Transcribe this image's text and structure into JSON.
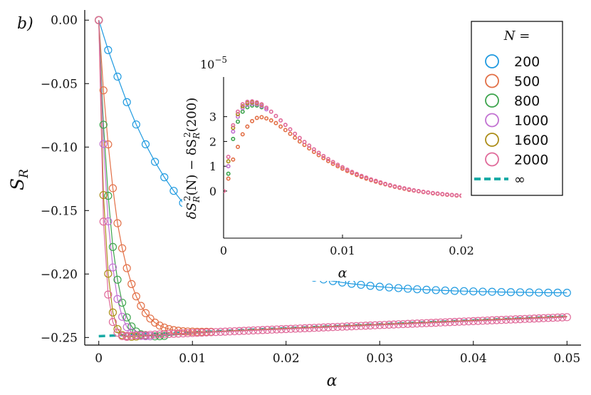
{
  "chart_data": [
    {
      "type": "scatter",
      "panel_label": "b)",
      "xlabel": "α",
      "ylabel": "S_R",
      "ylabel_main": "S",
      "ylabel_sub": "R",
      "xlim": [
        -0.0015,
        0.0515
      ],
      "ylim": [
        -0.256,
        0.008
      ],
      "x_ticks": [
        0,
        0.01,
        0.02,
        0.03,
        0.04,
        0.05
      ],
      "x_tick_labels": [
        "0",
        "0.01",
        "0.02",
        "0.03",
        "0.04",
        "0.05"
      ],
      "y_ticks": [
        0,
        -0.05,
        -0.1,
        -0.15,
        -0.2,
        -0.25
      ],
      "y_tick_labels": [
        "0.00",
        "−0.05",
        "−0.10",
        "−0.15",
        "−0.20",
        "−0.25"
      ],
      "legend": {
        "title": "N =",
        "position": "top-right",
        "entries": [
          {
            "label": "200",
            "color": "#1f9ae0"
          },
          {
            "label": "500",
            "color": "#e26f46"
          },
          {
            "label": "800",
            "color": "#3da44d"
          },
          {
            "label": "1000",
            "color": "#c271d2"
          },
          {
            "label": "1600",
            "color": "#ac8d18"
          },
          {
            "label": "2000",
            "color": "#e06a9a"
          },
          {
            "label": "∞",
            "color": "#19aaa5",
            "style": "dashed"
          }
        ]
      },
      "series": [
        {
          "name": "200",
          "color": "#1f9ae0",
          "marker": "circle",
          "line": "solid",
          "x_start": 0,
          "x_step": 0.001,
          "count": 51,
          "values": [
            0,
            -0.0236,
            -0.0445,
            -0.0646,
            -0.0822,
            -0.0978,
            -0.1116,
            -0.1238,
            -0.1345,
            -0.144,
            -0.1524,
            -0.1598,
            -0.1663,
            -0.1721,
            -0.1772,
            -0.1817,
            -0.1856,
            -0.1891,
            -0.1922,
            -0.1949,
            -0.1973,
            -0.1994,
            -0.2012,
            -0.2029,
            -0.2043,
            -0.2056,
            -0.2067,
            -0.2077,
            -0.2085,
            -0.2093,
            -0.21,
            -0.2106,
            -0.2111,
            -0.2116,
            -0.212,
            -0.2124,
            -0.2127,
            -0.213,
            -0.2133,
            -0.2135,
            -0.2137,
            -0.2139,
            -0.214,
            -0.2142,
            -0.2143,
            -0.2144,
            -0.2145,
            -0.2146,
            -0.2147,
            -0.2147,
            -0.2148
          ]
        },
        {
          "name": "500",
          "color": "#e26f46",
          "marker": "circle",
          "line": "solid",
          "x_start": 0,
          "x_step": 0.0005,
          "count": 25,
          "values": [
            0,
            -0.0553,
            -0.0979,
            -0.1324,
            -0.16,
            -0.1797,
            -0.1954,
            -0.2079,
            -0.2176,
            -0.2251,
            -0.2308,
            -0.2351,
            -0.2383,
            -0.2406,
            -0.2422,
            -0.2434,
            -0.2442,
            -0.2447,
            -0.2451,
            -0.2453,
            -0.2454,
            -0.2455,
            -0.2455,
            -0.2455,
            -0.2455
          ]
        },
        {
          "name": "800",
          "color": "#3da44d",
          "marker": "circle",
          "line": "solid",
          "x_start": 0,
          "x_step": 0.0005,
          "count": 15,
          "values": [
            0,
            -0.0824,
            -0.1384,
            -0.1787,
            -0.2045,
            -0.2226,
            -0.2342,
            -0.2413,
            -0.2453,
            -0.2475,
            -0.2485,
            -0.249,
            -0.2491,
            -0.249,
            -0.2488
          ]
        },
        {
          "name": "1000",
          "color": "#c271d2",
          "marker": "circle",
          "line": "solid",
          "x_start": 0,
          "x_step": 0.0005,
          "count": 12,
          "values": [
            0,
            -0.0975,
            -0.1585,
            -0.1948,
            -0.2197,
            -0.2337,
            -0.2418,
            -0.246,
            -0.248,
            -0.2488,
            -0.249,
            -0.249
          ]
        },
        {
          "name": "1600",
          "color": "#ac8d18",
          "marker": "circle",
          "line": "solid",
          "x_start": 0,
          "x_step": 0.0005,
          "count": 9,
          "values": [
            0,
            -0.1378,
            -0.1998,
            -0.2303,
            -0.2434,
            -0.2481,
            -0.2494,
            -0.2495,
            -0.2493
          ]
        },
        {
          "name": "2000",
          "color": "#e06a9a",
          "marker": "circle",
          "line": "solid",
          "x_start": 0,
          "x_step": 0.0005,
          "overlay": {
            "x_from": 0.003,
            "x_to": 0.05,
            "points": 95,
            "follows": "∞"
          },
          "values": [
            0,
            -0.1587,
            -0.2162,
            -0.2378,
            -0.2462,
            -0.2489,
            -0.2495
          ]
        },
        {
          "name": "∞",
          "color": "#19aaa5",
          "line": "dashed",
          "x": [
            0,
            0.05
          ],
          "y": [
            -0.249,
            -0.2334
          ]
        }
      ]
    },
    {
      "type": "scatter",
      "inset": true,
      "xlabel": "α",
      "ylabel": "δS_R²(N) − δS_R²(200)",
      "ylabel_part1": "δS",
      "ylabel_sub": "R",
      "ylabel_sup": "2",
      "ylabel_part2": "(N) − δS",
      "ylabel_sub2": "R",
      "ylabel_sup2": "2",
      "ylabel_part3": "(200)",
      "y_scale_label": "10",
      "y_scale_exp": "−5",
      "xlim": [
        0,
        0.02
      ],
      "ylim": [
        -1.9,
        4.6
      ],
      "x_ticks": [
        0,
        0.01,
        0.02
      ],
      "x_tick_labels": [
        "0",
        "0.01",
        "0.02"
      ],
      "y_ticks": [
        0,
        1,
        2,
        3
      ],
      "y_tick_labels": [
        "0",
        "1",
        "2",
        "3"
      ],
      "series": [
        {
          "name": "500",
          "color": "#e26f46",
          "x": [
            0,
            0.0004,
            0.0008,
            0.0012,
            0.0016,
            0.002,
            0.0024,
            0.0028,
            0.0032,
            0.0036,
            0.004,
            0.0044,
            0.0048,
            0.0052,
            0.0056,
            0.006,
            0.0064,
            0.0068,
            0.0072,
            0.0076,
            0.008,
            0.0084,
            0.0088,
            0.0092,
            0.0096,
            0.01,
            0.0104,
            0.0108,
            0.0112,
            0.0116,
            0.012,
            0.0124,
            0.0128,
            0.0132,
            0.0136,
            0.014,
            0.0144,
            0.0148,
            0.0152,
            0.0156,
            0.016,
            0.0164,
            0.0168,
            0.0172,
            0.0176,
            0.018,
            0.0184,
            0.0188,
            0.0192,
            0.0196,
            0.02
          ],
          "y": [
            0,
            0.5,
            1.27,
            1.78,
            2.29,
            2.6,
            2.82,
            2.95,
            2.98,
            2.93,
            2.85,
            2.74,
            2.6,
            2.46,
            2.31,
            2.15,
            2.0,
            1.86,
            1.72,
            1.58,
            1.45,
            1.33,
            1.21,
            1.1,
            1.0,
            0.9,
            0.81,
            0.73,
            0.65,
            0.57,
            0.5,
            0.44,
            0.38,
            0.32,
            0.27,
            0.22,
            0.17,
            0.13,
            0.09,
            0.05,
            0.02,
            -0.01,
            -0.04,
            -0.06,
            -0.09,
            -0.11,
            -0.13,
            -0.15,
            -0.16,
            -0.18,
            -0.19
          ]
        },
        {
          "name": "800",
          "color": "#3da44d",
          "x": [
            0.0004,
            0.0008,
            0.0012,
            0.0016,
            0.002,
            0.0024,
            0.0028,
            0.0032
          ],
          "y": [
            0.7,
            2.1,
            2.8,
            3.2,
            3.38,
            3.45,
            3.45,
            3.38
          ]
        },
        {
          "name": "1000",
          "color": "#c271d2",
          "x": [
            0.0004,
            0.0008,
            0.0012,
            0.0016,
            0.002,
            0.0024,
            0.0028,
            0.0032,
            0.0036
          ],
          "y": [
            1.0,
            2.4,
            3.0,
            3.35,
            3.48,
            3.52,
            3.5,
            3.42,
            3.3
          ]
        },
        {
          "name": "1600",
          "color": "#ac8d18",
          "x": [
            0.0004,
            0.0008,
            0.0012,
            0.0016,
            0.002,
            0.0024,
            0.0028,
            0.0032
          ],
          "y": [
            1.2,
            2.55,
            3.1,
            3.42,
            3.55,
            3.58,
            3.55,
            3.48
          ]
        },
        {
          "name": "2000",
          "color": "#e06a9a",
          "x": [
            0,
            0.0004,
            0.0008,
            0.0012,
            0.0016,
            0.002,
            0.0024,
            0.0028,
            0.0032,
            0.0036,
            0.004,
            0.0044,
            0.0048,
            0.0052,
            0.0056,
            0.006,
            0.0064,
            0.0068,
            0.0072,
            0.0076,
            0.008,
            0.0084,
            0.0088,
            0.0092,
            0.0096,
            0.01,
            0.0104,
            0.0108,
            0.0112,
            0.0116,
            0.012,
            0.0124,
            0.0128,
            0.0132,
            0.0136,
            0.014,
            0.0144,
            0.0148,
            0.0152,
            0.0156,
            0.016,
            0.0164,
            0.0168,
            0.0172,
            0.0176,
            0.018,
            0.0184,
            0.0188,
            0.0192,
            0.0196,
            0.02
          ],
          "y": [
            0,
            1.38,
            2.65,
            3.2,
            3.5,
            3.6,
            3.62,
            3.58,
            3.5,
            3.36,
            3.2,
            3.03,
            2.85,
            2.67,
            2.49,
            2.31,
            2.14,
            1.98,
            1.83,
            1.68,
            1.54,
            1.41,
            1.29,
            1.17,
            1.06,
            0.96,
            0.86,
            0.77,
            0.69,
            0.61,
            0.54,
            0.47,
            0.41,
            0.35,
            0.29,
            0.24,
            0.19,
            0.15,
            0.11,
            0.07,
            0.03,
            0.0,
            -0.03,
            -0.06,
            -0.08,
            -0.1,
            -0.12,
            -0.14,
            -0.16,
            -0.17,
            -0.18
          ]
        }
      ]
    }
  ]
}
